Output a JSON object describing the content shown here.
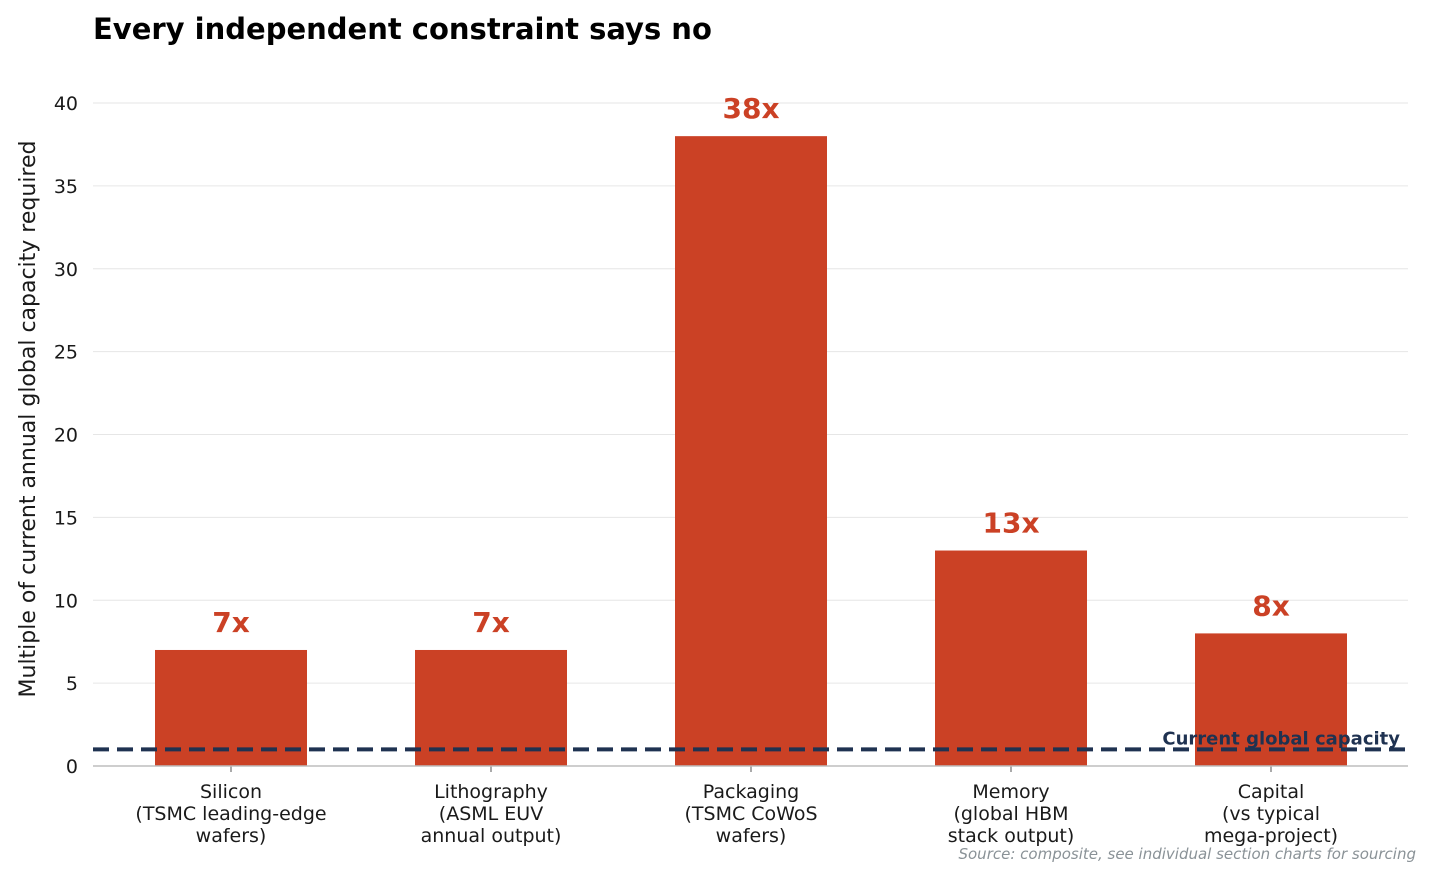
{
  "chart_data": {
    "type": "bar",
    "title": "Every independent constraint says no",
    "ylabel": "Multiple of current annual global capacity required",
    "xlabel": "",
    "ylim": [
      0,
      40
    ],
    "yticks": [
      0,
      5,
      10,
      15,
      20,
      25,
      30,
      35,
      40
    ],
    "grid": "horizontal",
    "categories": [
      [
        "Silicon",
        "(TSMC leading-edge",
        "wafers)"
      ],
      [
        "Lithography",
        "(ASML EUV",
        "annual output)"
      ],
      [
        "Packaging",
        "(TSMC CoWoS",
        "wafers)"
      ],
      [
        "Memory",
        "(global HBM",
        "stack output)"
      ],
      [
        "Capital",
        "(vs typical",
        "mega-project)"
      ]
    ],
    "values": [
      7,
      7,
      38,
      13,
      8
    ],
    "data_labels": [
      "7x",
      "7x",
      "38x",
      "13x",
      "8x"
    ],
    "reference_line": {
      "value": 1,
      "label": "Current global capacity",
      "style": "dashed"
    },
    "source_note": "Source: composite, see individual section charts for sourcing",
    "colors": {
      "bar": "#cb4125",
      "reference": "#1f3251",
      "grid": "#e6e6e6",
      "axis": "#bdbdbd"
    }
  }
}
